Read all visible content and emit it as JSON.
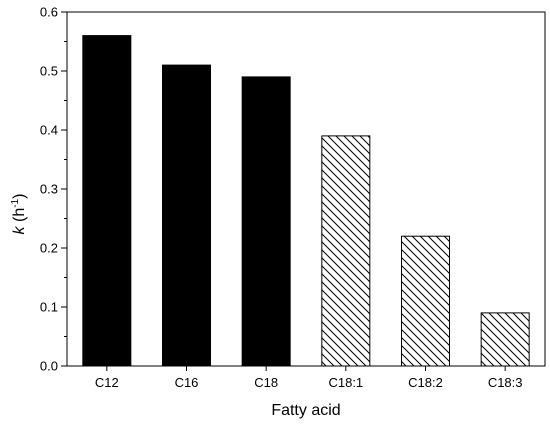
{
  "chart_data": {
    "type": "bar",
    "categories": [
      "C12",
      "C16",
      "C18",
      "C18:1",
      "C18:2",
      "C18:3"
    ],
    "values": [
      0.56,
      0.51,
      0.49,
      0.39,
      0.22,
      0.09
    ],
    "styles": [
      "solid",
      "solid",
      "solid",
      "hatched",
      "hatched",
      "hatched"
    ],
    "xlabel": "Fatty acid",
    "ylabel": {
      "symbol": "k",
      "unit_open": "(h",
      "unit_exp": "-1",
      "unit_close": ")"
    },
    "ylim": [
      0,
      0.6
    ],
    "yticks": [
      "0.0",
      "0.1",
      "0.2",
      "0.3",
      "0.4",
      "0.5",
      "0.6"
    ],
    "grid": false,
    "colors": {
      "solid": "#000000",
      "hatch": "#000000",
      "background": "#ffffff"
    }
  }
}
